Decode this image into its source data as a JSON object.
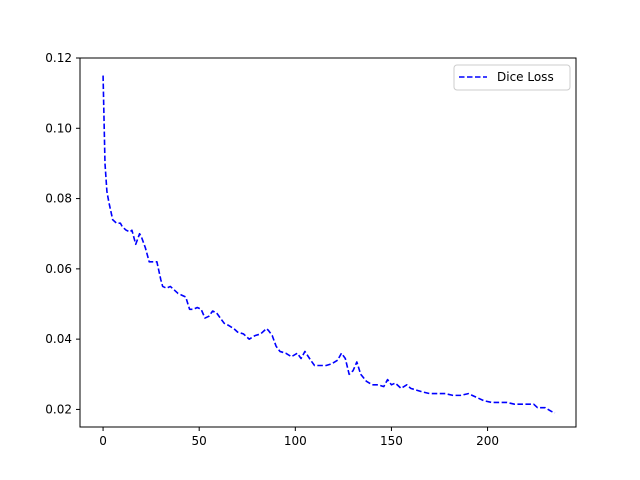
{
  "chart_data": {
    "type": "line",
    "title": "",
    "xlabel": "",
    "ylabel": "",
    "xlim": [
      -12,
      246
    ],
    "ylim": [
      0.015,
      0.12
    ],
    "xticks": [
      0,
      50,
      100,
      150,
      200
    ],
    "yticks": [
      0.02,
      0.04,
      0.06,
      0.08,
      0.1,
      0.12
    ],
    "ytick_labels": [
      "0.02",
      "0.04",
      "0.06",
      "0.08",
      "0.10",
      "0.12"
    ],
    "xtick_labels": [
      "0",
      "50",
      "100",
      "150",
      "200"
    ],
    "grid": false,
    "legend_position": "top-right",
    "series": [
      {
        "name": "Dice Loss",
        "color": "#0000ff",
        "linestyle": "dashed",
        "x": [
          0,
          1,
          2,
          3,
          5,
          7,
          9,
          10,
          12,
          14,
          15,
          17,
          19,
          20,
          22,
          24,
          26,
          28,
          30,
          31,
          33,
          35,
          37,
          39,
          41,
          43,
          45,
          47,
          49,
          51,
          53,
          55,
          57,
          59,
          61,
          63,
          65,
          68,
          70,
          73,
          76,
          79,
          82,
          85,
          86,
          88,
          90,
          92,
          95,
          98,
          101,
          103,
          105,
          108,
          110,
          113,
          116,
          119,
          122,
          124,
          126,
          128,
          130,
          132,
          134,
          137,
          140,
          143,
          146,
          148,
          150,
          152,
          155,
          158,
          160,
          163,
          166,
          170,
          174,
          178,
          182,
          186,
          190,
          194,
          198,
          202,
          206,
          210,
          214,
          218,
          222,
          224,
          226,
          230,
          233,
          235
        ],
        "y": [
          0.115,
          0.09,
          0.082,
          0.079,
          0.074,
          0.073,
          0.073,
          0.072,
          0.071,
          0.0705,
          0.071,
          0.067,
          0.07,
          0.069,
          0.066,
          0.062,
          0.062,
          0.062,
          0.057,
          0.055,
          0.0545,
          0.055,
          0.054,
          0.053,
          0.0525,
          0.052,
          0.0485,
          0.0485,
          0.049,
          0.0485,
          0.046,
          0.0465,
          0.048,
          0.0475,
          0.046,
          0.0445,
          0.044,
          0.043,
          0.042,
          0.0415,
          0.04,
          0.041,
          0.0415,
          0.043,
          0.0425,
          0.041,
          0.038,
          0.0365,
          0.036,
          0.035,
          0.036,
          0.0345,
          0.0365,
          0.034,
          0.0325,
          0.0325,
          0.0325,
          0.033,
          0.034,
          0.036,
          0.0345,
          0.03,
          0.031,
          0.0335,
          0.03,
          0.028,
          0.027,
          0.027,
          0.0265,
          0.0285,
          0.027,
          0.0275,
          0.026,
          0.027,
          0.026,
          0.0255,
          0.025,
          0.0245,
          0.0245,
          0.0245,
          0.024,
          0.024,
          0.0245,
          0.0235,
          0.0225,
          0.022,
          0.022,
          0.022,
          0.0215,
          0.0215,
          0.0215,
          0.0215,
          0.0205,
          0.0205,
          0.0195,
          0.019
        ]
      }
    ]
  }
}
